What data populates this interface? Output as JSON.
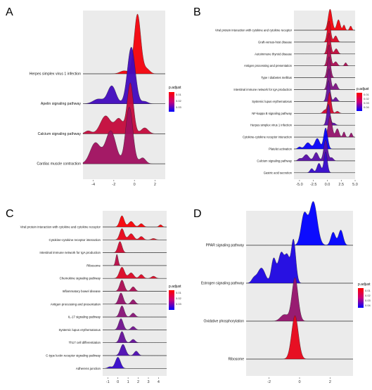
{
  "chart_data": [
    {
      "panel_label": "A",
      "type": "ridgeline",
      "legend_title": "p.adjust",
      "legend_ticks": [
        "0.01",
        "0.02",
        "0.03"
      ],
      "colors": {
        "low": "#ff0000",
        "high": "#0000ff"
      },
      "xlim": [
        -5,
        3
      ],
      "xticks": [
        "-4",
        "-2",
        "0",
        "2"
      ],
      "series": [
        {
          "name": "Herpes simplex virus 1 infection",
          "p_adjust": 0.004,
          "peaks": [
            [
              0.3,
              1.0,
              0.32
            ],
            [
              1.2,
              0.08,
              0.3
            ],
            [
              -1.0,
              0.05,
              0.4
            ]
          ]
        },
        {
          "name": "Apelin signaling pathway",
          "p_adjust": 0.034,
          "peaks": [
            [
              -0.3,
              0.95,
              0.38
            ],
            [
              -2.2,
              0.3,
              0.4
            ],
            [
              -3.5,
              0.08,
              0.5
            ],
            [
              1.0,
              0.04,
              0.3
            ]
          ]
        },
        {
          "name": "Calcium signaling pathway",
          "p_adjust": 0.012,
          "peaks": [
            [
              -0.4,
              0.85,
              0.3
            ],
            [
              -2.8,
              0.3,
              0.5
            ],
            [
              -1.5,
              0.25,
              0.4
            ],
            [
              1.0,
              0.1,
              0.35
            ],
            [
              -4.5,
              0.05,
              0.3
            ]
          ]
        },
        {
          "name": "Cardiac muscle contraction",
          "p_adjust": 0.018,
          "peaks": [
            [
              -0.5,
              0.95,
              0.35
            ],
            [
              -2.3,
              0.55,
              0.5
            ],
            [
              -3.8,
              0.35,
              0.5
            ],
            [
              0.8,
              0.1,
              0.3
            ]
          ]
        }
      ]
    },
    {
      "panel_label": "B",
      "type": "ridgeline",
      "legend_title": "p.adjust",
      "legend_ticks": [
        "0.01",
        "0.02",
        "0.03",
        "0.04"
      ],
      "colors": {
        "low": "#ff0000",
        "high": "#0000ff"
      },
      "xlim": [
        -6,
        5
      ],
      "xticks": [
        "-5.0",
        "-2.5",
        "0.0",
        "2.5",
        "5.0"
      ],
      "series": [
        {
          "name": "Viral protein interaction with cytokine and cytokine receptor",
          "p_adjust": 0.004,
          "peaks": [
            [
              0.5,
              1.0,
              0.35
            ],
            [
              2.0,
              0.5,
              0.3
            ],
            [
              3.0,
              0.25,
              0.2
            ],
            [
              4.2,
              0.2,
              0.2
            ]
          ]
        },
        {
          "name": "Graft-versus-host disease",
          "p_adjust": 0.008,
          "peaks": [
            [
              0.3,
              1.0,
              0.3
            ],
            [
              1.5,
              0.3,
              0.3
            ]
          ]
        },
        {
          "name": "Autoimmune thyroid disease",
          "p_adjust": 0.012,
          "peaks": [
            [
              0.3,
              1.0,
              0.3
            ],
            [
              1.6,
              0.25,
              0.3
            ]
          ]
        },
        {
          "name": "Antigen processing and presentation",
          "p_adjust": 0.016,
          "peaks": [
            [
              0.3,
              1.0,
              0.3
            ],
            [
              1.5,
              0.2,
              0.3
            ],
            [
              3.3,
              0.15,
              0.2
            ]
          ]
        },
        {
          "name": "Type I diabetes mellitus",
          "p_adjust": 0.02,
          "peaks": [
            [
              0.3,
              1.0,
              0.3
            ]
          ]
        },
        {
          "name": "Intestinal immune network for IgA production",
          "p_adjust": 0.024,
          "peaks": [
            [
              0.3,
              1.0,
              0.3
            ],
            [
              1.5,
              0.3,
              0.3
            ]
          ]
        },
        {
          "name": "Systemic lupus erythematosus",
          "p_adjust": 0.028,
          "peaks": [
            [
              0.2,
              1.0,
              0.3
            ],
            [
              1.5,
              0.2,
              0.3
            ]
          ]
        },
        {
          "name": "NF-kappa B signaling pathway",
          "p_adjust": 0.01,
          "peaks": [
            [
              0.4,
              1.0,
              0.3
            ],
            [
              -0.5,
              0.15,
              0.3
            ],
            [
              1.8,
              0.1,
              0.3
            ]
          ]
        },
        {
          "name": "Herpes simplex virus 1 infection",
          "p_adjust": 0.03,
          "peaks": [
            [
              0.2,
              1.0,
              0.3
            ],
            [
              1.2,
              0.1,
              0.3
            ]
          ]
        },
        {
          "name": "Cytokine-cytokine receptor interaction",
          "p_adjust": 0.02,
          "peaks": [
            [
              0.5,
              1.0,
              0.35
            ],
            [
              1.8,
              0.4,
              0.3
            ],
            [
              3.0,
              0.25,
              0.2
            ],
            [
              4.3,
              0.2,
              0.2
            ]
          ]
        },
        {
          "name": "Platelet activation",
          "p_adjust": 0.044,
          "peaks": [
            [
              -0.3,
              1.0,
              0.35
            ],
            [
              -1.8,
              0.5,
              0.45
            ],
            [
              -3.5,
              0.3,
              0.5
            ],
            [
              -5.0,
              0.1,
              0.3
            ]
          ]
        },
        {
          "name": "Calcium signaling pathway",
          "p_adjust": 0.03,
          "peaks": [
            [
              -0.3,
              1.0,
              0.35
            ],
            [
              -2.0,
              0.4,
              0.4
            ],
            [
              -3.8,
              0.3,
              0.5
            ],
            [
              -5.0,
              0.1,
              0.3
            ],
            [
              0.8,
              0.15,
              0.3
            ]
          ]
        },
        {
          "name": "Gastric acid secretion",
          "p_adjust": 0.036,
          "peaks": [
            [
              -0.3,
              1.0,
              0.3
            ],
            [
              -1.5,
              0.45,
              0.35
            ],
            [
              -2.8,
              0.2,
              0.3
            ]
          ]
        }
      ]
    },
    {
      "panel_label": "C",
      "type": "ridgeline",
      "legend_title": "p.adjust",
      "legend_ticks": [
        "0.01",
        "0.02",
        "0.03"
      ],
      "colors": {
        "low": "#ff0000",
        "high": "#0000ff"
      },
      "xlim": [
        -1.5,
        4.8
      ],
      "xticks": [
        "-1",
        "0",
        "1",
        "2",
        "3",
        "4"
      ],
      "series": [
        {
          "name": "Viral protein interaction with cytokine and cytokine receptor",
          "p_adjust": 0.003,
          "peaks": [
            [
              0.4,
              1.0,
              0.22
            ],
            [
              1.3,
              0.5,
              0.25
            ],
            [
              2.3,
              0.3,
              0.2
            ],
            [
              4.2,
              0.2,
              0.15
            ]
          ]
        },
        {
          "name": "Cytokine-cytokine receptor interaction",
          "p_adjust": 0.006,
          "peaks": [
            [
              0.4,
              1.0,
              0.22
            ],
            [
              1.3,
              0.55,
              0.25
            ],
            [
              2.3,
              0.3,
              0.2
            ],
            [
              3.5,
              0.12,
              0.2
            ]
          ]
        },
        {
          "name": "Intestinal immune network for IgA production",
          "p_adjust": 0.01,
          "peaks": [
            [
              0.2,
              1.0,
              0.2
            ]
          ]
        },
        {
          "name": "Ribosome",
          "p_adjust": 0.014,
          "peaks": [
            [
              -0.1,
              1.0,
              0.12
            ]
          ]
        },
        {
          "name": "Chemokine signaling pathway",
          "p_adjust": 0.008,
          "peaks": [
            [
              0.4,
              1.0,
              0.25
            ],
            [
              1.3,
              0.5,
              0.25
            ],
            [
              2.3,
              0.35,
              0.2
            ],
            [
              3.5,
              0.2,
              0.2
            ]
          ]
        },
        {
          "name": "Inflammatory bowel disease",
          "p_adjust": 0.016,
          "peaks": [
            [
              0.4,
              1.0,
              0.22
            ],
            [
              1.5,
              0.4,
              0.2
            ]
          ]
        },
        {
          "name": "Antigen processing and presentation",
          "p_adjust": 0.02,
          "peaks": [
            [
              0.3,
              1.0,
              0.22
            ],
            [
              1.5,
              0.4,
              0.2
            ]
          ]
        },
        {
          "name": "IL-17 signaling pathway",
          "p_adjust": 0.022,
          "peaks": [
            [
              0.4,
              1.0,
              0.22
            ],
            [
              1.5,
              0.35,
              0.2
            ]
          ]
        },
        {
          "name": "Systemic lupus erythematosus",
          "p_adjust": 0.026,
          "peaks": [
            [
              0.3,
              1.0,
              0.22
            ],
            [
              1.5,
              0.3,
              0.2
            ]
          ]
        },
        {
          "name": "Th17 cell differentiation",
          "p_adjust": 0.028,
          "peaks": [
            [
              0.4,
              1.0,
              0.22
            ],
            [
              1.5,
              0.3,
              0.2
            ]
          ]
        },
        {
          "name": "C-type lectin receptor signaling pathway",
          "p_adjust": 0.032,
          "peaks": [
            [
              0.5,
              1.0,
              0.25
            ],
            [
              1.8,
              0.4,
              0.2
            ]
          ]
        },
        {
          "name": "Adherens junction",
          "p_adjust": 0.036,
          "peaks": [
            [
              0.0,
              1.0,
              0.25
            ],
            [
              -0.8,
              0.15,
              0.2
            ]
          ]
        }
      ]
    },
    {
      "panel_label": "D",
      "type": "ridgeline",
      "legend_title": "p.adjust",
      "legend_ticks": [
        "0.01",
        "0.02",
        "0.03",
        "0.04"
      ],
      "colors": {
        "low": "#ff0000",
        "high": "#0000ff"
      },
      "xlim": [
        -3.5,
        3.5
      ],
      "xticks": [
        "-2",
        "0",
        "2"
      ],
      "series": [
        {
          "name": "PPAR signaling pathway",
          "p_adjust": 0.045,
          "peaks": [
            [
              0.9,
              1.0,
              0.25
            ],
            [
              0.3,
              0.7,
              0.2
            ],
            [
              2.2,
              0.3,
              0.15
            ],
            [
              2.7,
              0.35,
              0.15
            ]
          ]
        },
        {
          "name": "Estrogen signaling pathway",
          "p_adjust": 0.04,
          "peaks": [
            [
              -0.4,
              1.0,
              0.15
            ],
            [
              -1.2,
              0.7,
              0.2
            ],
            [
              -1.7,
              0.55,
              0.15
            ],
            [
              -0.8,
              0.55,
              0.15
            ],
            [
              -2.5,
              0.35,
              0.25
            ],
            [
              -3.0,
              0.1,
              0.15
            ]
          ]
        },
        {
          "name": "Oxidative phosphorylation",
          "p_adjust": 0.02,
          "peaks": [
            [
              -0.3,
              1.0,
              0.2
            ],
            [
              -1.0,
              0.15,
              0.25
            ]
          ]
        },
        {
          "name": "Ribosome",
          "p_adjust": 0.006,
          "peaks": [
            [
              -0.3,
              1.0,
              0.22
            ]
          ]
        }
      ]
    }
  ]
}
